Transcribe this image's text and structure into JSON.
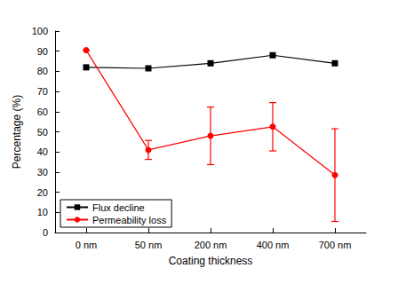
{
  "chart_data": {
    "type": "line",
    "x_label": "Coating thickness",
    "y_label": "Percentage (%)",
    "categories": [
      "0 nm",
      "50 nm",
      "200 nm",
      "400 nm",
      "700 nm"
    ],
    "series": [
      {
        "name": "Flux decline",
        "color": "#000000",
        "marker": "square",
        "line_style": "solid",
        "values": [
          82,
          81.5,
          84,
          88,
          84
        ]
      },
      {
        "name": "Permeability loss",
        "color": "#ff0000",
        "marker": "circle",
        "line_style": "solid",
        "values": [
          90.5,
          41,
          48,
          52.5,
          28.5
        ],
        "errors": [
          0,
          4.7,
          14.3,
          12,
          23
        ]
      }
    ],
    "ylim": [
      0,
      100
    ],
    "yticks": [
      0,
      10,
      20,
      30,
      40,
      50,
      60,
      70,
      80,
      90,
      100
    ],
    "grid": false,
    "legend": "lower left"
  }
}
